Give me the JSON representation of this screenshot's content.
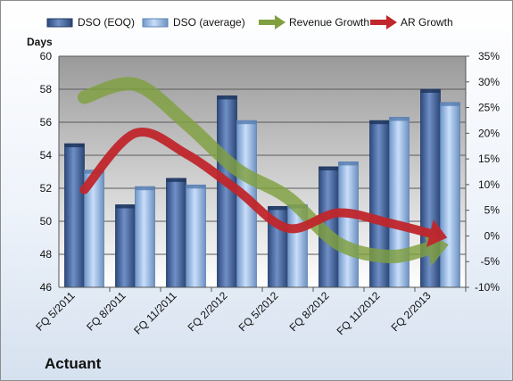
{
  "chart_data": {
    "type": "bar",
    "company": "Actuant",
    "categories": [
      "FQ 5/2011",
      "FQ 8/2011",
      "FQ 11/2011",
      "FQ 2/2012",
      "FQ 5/2012",
      "FQ 8/2012",
      "FQ 11/2012",
      "FQ 2/2013"
    ],
    "y_left_label": "Days",
    "y_left_lim": [
      46,
      60
    ],
    "y_left_ticks": [
      "46",
      "48",
      "50",
      "52",
      "54",
      "56",
      "58",
      "60"
    ],
    "y_right_lim": [
      -10,
      35
    ],
    "y_right_ticks": [
      "-10%",
      "-5%",
      "0%",
      "5%",
      "10%",
      "15%",
      "20%",
      "25%",
      "30%",
      "35%"
    ],
    "grid": true,
    "legend_position": "top",
    "series": [
      {
        "name": "DSO (EOQ)",
        "type": "bar",
        "axis": "left",
        "color": "#4f6fa8",
        "values": [
          54.7,
          51.0,
          52.6,
          57.6,
          50.9,
          53.3,
          56.1,
          58.0
        ]
      },
      {
        "name": "DSO (average)",
        "type": "bar",
        "axis": "left",
        "color": "#a9c8ea",
        "values": [
          53.1,
          52.1,
          52.2,
          56.1,
          51.0,
          53.6,
          56.3,
          57.2
        ]
      },
      {
        "name": "Revenue Growth",
        "type": "line",
        "axis": "right",
        "color": "#80a040",
        "values": [
          27,
          29.5,
          22,
          13,
          7.5,
          -1.5,
          -4,
          -2
        ]
      },
      {
        "name": "AR Growth",
        "type": "line",
        "axis": "right",
        "color": "#c0262b",
        "values": [
          9,
          20,
          16,
          9,
          1.5,
          4.5,
          2.5,
          0
        ]
      }
    ]
  }
}
